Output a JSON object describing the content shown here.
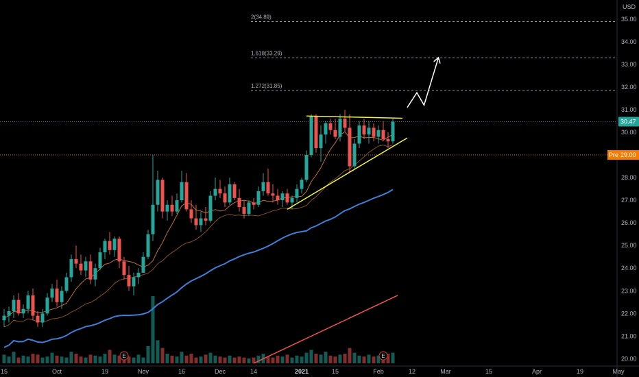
{
  "currency": "USD",
  "price_tags": {
    "last": {
      "value": 30.47,
      "label": "30.47",
      "color": "#26a69a"
    },
    "pre": {
      "value": 29.0,
      "prefix": "Pre",
      "label": "29.00",
      "color": "#f57c00"
    }
  },
  "fib_levels": [
    {
      "ratio": "2",
      "price": 34.89,
      "label": "2(34.89)"
    },
    {
      "ratio": "1.618",
      "price": 33.29,
      "label": "1.618(33.29)"
    },
    {
      "ratio": "1.272",
      "price": 31.85,
      "label": "1.272(31.85)"
    }
  ],
  "earnings_marker": "E",
  "colors": {
    "up": "#26a69a",
    "down": "#ef5350",
    "ma_fast": "#ef5350",
    "ma_slow": "#e0883a",
    "ma_long": "#3d7fd6",
    "trend_lines": "#f5f53a",
    "projection": "#ffffff"
  },
  "chart_data": {
    "type": "candlestick",
    "ylim": [
      19.8,
      35.6
    ],
    "y_ticks": [
      20.0,
      21.0,
      22.0,
      23.0,
      24.0,
      25.0,
      26.0,
      27.0,
      28.0,
      29.0,
      30.0,
      31.0,
      32.0,
      33.0,
      34.0,
      35.0
    ],
    "y_tick_labels": [
      "20.00",
      "21.00",
      "22.00",
      "23.00",
      "24.00",
      "25.00",
      "26.00",
      "27.00",
      "28.00",
      "29.00",
      "30.00",
      "31.00",
      "32.00",
      "33.00",
      "34.00",
      "35.00"
    ],
    "x_ticks": [
      {
        "label": "15",
        "bar": 0
      },
      {
        "label": "Oct",
        "bar": 11
      },
      {
        "label": "19",
        "bar": 21
      },
      {
        "label": "Nov",
        "bar": 29
      },
      {
        "label": "16",
        "bar": 37
      },
      {
        "label": "Dec",
        "bar": 45
      },
      {
        "label": "14",
        "bar": 52
      },
      {
        "label": "2021",
        "bar": 62,
        "bold": true
      },
      {
        "label": "15",
        "bar": 69
      },
      {
        "label": "Feb",
        "bar": 78
      },
      {
        "label": "12",
        "bar": 85
      },
      {
        "label": "Mar",
        "bar": 92
      },
      {
        "label": "15",
        "bar": 101
      },
      {
        "label": "Apr",
        "bar": 111
      },
      {
        "label": "19",
        "bar": 120
      },
      {
        "label": "May",
        "bar": 128
      }
    ],
    "candles": [
      [
        21.7,
        22.2,
        21.4,
        21.9
      ],
      [
        21.9,
        22.3,
        21.6,
        22.1
      ],
      [
        22.1,
        22.8,
        21.8,
        22.6
      ],
      [
        22.6,
        22.9,
        21.9,
        22.0
      ],
      [
        22.0,
        22.4,
        21.8,
        22.2
      ],
      [
        22.2,
        23.0,
        22.0,
        22.8
      ],
      [
        22.8,
        23.1,
        21.7,
        21.9
      ],
      [
        21.9,
        22.1,
        21.4,
        21.6
      ],
      [
        21.6,
        22.2,
        21.4,
        22.0
      ],
      [
        22.0,
        22.9,
        21.9,
        22.7
      ],
      [
        22.7,
        23.3,
        22.5,
        23.1
      ],
      [
        23.1,
        23.5,
        22.3,
        22.5
      ],
      [
        22.5,
        23.2,
        22.2,
        23.0
      ],
      [
        23.0,
        23.8,
        22.9,
        23.6
      ],
      [
        23.6,
        24.6,
        23.4,
        24.4
      ],
      [
        24.4,
        25.0,
        24.0,
        24.2
      ],
      [
        24.2,
        24.6,
        23.7,
        23.9
      ],
      [
        23.9,
        24.5,
        23.6,
        24.3
      ],
      [
        24.3,
        24.6,
        23.3,
        23.5
      ],
      [
        23.5,
        24.2,
        23.2,
        24.0
      ],
      [
        24.0,
        24.9,
        23.9,
        24.7
      ],
      [
        24.7,
        25.3,
        24.4,
        25.2
      ],
      [
        25.2,
        25.6,
        24.6,
        24.8
      ],
      [
        24.8,
        25.4,
        24.5,
        25.3
      ],
      [
        25.3,
        25.4,
        24.0,
        24.3
      ],
      [
        24.3,
        24.5,
        23.5,
        23.7
      ],
      [
        23.7,
        24.1,
        23.0,
        23.2
      ],
      [
        23.2,
        23.8,
        22.8,
        23.6
      ],
      [
        23.6,
        24.0,
        23.3,
        23.8
      ],
      [
        23.8,
        24.7,
        23.8,
        24.5
      ],
      [
        24.5,
        25.7,
        24.4,
        25.5
      ],
      [
        25.5,
        29.0,
        25.2,
        26.8
      ],
      [
        26.8,
        28.3,
        26.5,
        27.9
      ],
      [
        27.9,
        28.0,
        26.2,
        26.5
      ],
      [
        26.5,
        27.0,
        26.1,
        26.8
      ],
      [
        26.8,
        27.2,
        26.3,
        26.5
      ],
      [
        26.5,
        27.3,
        26.4,
        27.0
      ],
      [
        27.0,
        28.3,
        26.9,
        27.8
      ],
      [
        27.8,
        28.2,
        26.5,
        26.6
      ],
      [
        26.6,
        27.0,
        26.0,
        26.2
      ],
      [
        26.2,
        26.8,
        25.7,
        25.9
      ],
      [
        25.9,
        26.5,
        25.6,
        26.2
      ],
      [
        26.2,
        26.7,
        25.9,
        26.1
      ],
      [
        26.1,
        27.4,
        26.0,
        27.2
      ],
      [
        27.2,
        28.0,
        27.0,
        27.5
      ],
      [
        27.5,
        27.9,
        27.1,
        27.3
      ],
      [
        27.3,
        27.6,
        26.7,
        26.9
      ],
      [
        26.9,
        28.0,
        26.8,
        27.7
      ],
      [
        27.7,
        27.8,
        27.0,
        27.1
      ],
      [
        27.1,
        27.5,
        26.5,
        26.7
      ],
      [
        26.7,
        27.0,
        26.2,
        26.4
      ],
      [
        26.4,
        27.0,
        26.3,
        26.9
      ],
      [
        26.9,
        27.1,
        26.6,
        26.8
      ],
      [
        26.8,
        27.6,
        26.7,
        27.4
      ],
      [
        27.4,
        28.2,
        27.2,
        27.8
      ],
      [
        27.8,
        28.4,
        27.2,
        27.3
      ],
      [
        27.3,
        27.7,
        26.9,
        27.2
      ],
      [
        27.2,
        27.5,
        26.8,
        27.0
      ],
      [
        27.0,
        27.4,
        26.7,
        27.3
      ],
      [
        27.3,
        27.5,
        26.8,
        26.9
      ],
      [
        26.9,
        27.2,
        26.6,
        27.1
      ],
      [
        27.1,
        27.7,
        26.9,
        27.5
      ],
      [
        27.5,
        28.0,
        27.3,
        27.9
      ],
      [
        27.9,
        29.2,
        27.8,
        29.0
      ],
      [
        29.0,
        30.8,
        28.9,
        30.7
      ],
      [
        30.7,
        30.8,
        29.1,
        29.3
      ],
      [
        29.3,
        30.3,
        28.7,
        29.9
      ],
      [
        29.9,
        30.5,
        29.5,
        30.4
      ],
      [
        30.4,
        30.6,
        29.9,
        30.1
      ],
      [
        30.1,
        30.6,
        29.7,
        29.8
      ],
      [
        29.8,
        30.8,
        29.6,
        30.6
      ],
      [
        30.6,
        31.0,
        30.0,
        30.2
      ],
      [
        30.2,
        30.8,
        28.2,
        28.5
      ],
      [
        28.5,
        29.7,
        28.4,
        29.5
      ],
      [
        29.5,
        30.5,
        29.3,
        30.3
      ],
      [
        30.3,
        30.6,
        29.7,
        29.9
      ],
      [
        29.9,
        30.5,
        29.5,
        30.2
      ],
      [
        30.2,
        30.4,
        29.6,
        29.8
      ],
      [
        29.8,
        30.3,
        29.5,
        30.1
      ],
      [
        30.1,
        30.5,
        29.6,
        29.7
      ],
      [
        29.7,
        30.0,
        29.3,
        29.6
      ],
      [
        29.6,
        30.6,
        29.5,
        30.47
      ]
    ],
    "volume": [
      0.45,
      0.35,
      0.6,
      0.3,
      0.4,
      0.35,
      0.5,
      0.45,
      0.3,
      0.35,
      0.55,
      0.4,
      0.35,
      0.3,
      0.6,
      0.5,
      0.35,
      0.3,
      0.45,
      0.4,
      0.35,
      0.5,
      0.7,
      0.45,
      0.4,
      0.5,
      0.35,
      0.3,
      0.45,
      0.3,
      0.9,
      3.5,
      1.2,
      0.8,
      0.5,
      0.4,
      0.35,
      0.6,
      0.4,
      0.5,
      0.3,
      0.35,
      0.45,
      0.55,
      0.4,
      0.35,
      0.3,
      0.4,
      0.3,
      0.35,
      0.3,
      0.25,
      0.3,
      0.4,
      0.5,
      0.35,
      0.3,
      0.4,
      0.35,
      0.45,
      0.3,
      0.4,
      0.35,
      0.55,
      0.7,
      0.5,
      0.45,
      0.6,
      0.4,
      0.35,
      0.45,
      0.5,
      0.8,
      0.55,
      0.4,
      0.35,
      0.45,
      0.35,
      0.4,
      0.3,
      0.5,
      0.55
    ],
    "projection_path": [
      [
        31.1
      ],
      [
        31.75
      ],
      [
        31.2
      ],
      [
        33.3
      ]
    ]
  }
}
